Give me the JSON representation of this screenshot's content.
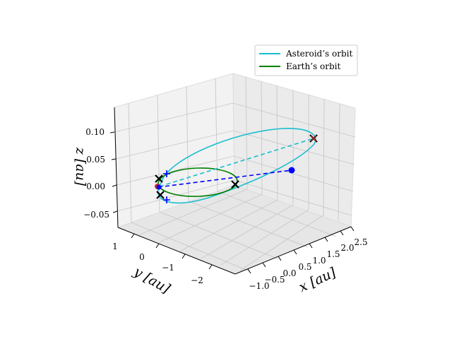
{
  "chart_data": {
    "type": "line",
    "projection": "3d",
    "legend": {
      "placement": "top-right",
      "entries": [
        {
          "label": "Asteroid’s orbit",
          "color": "#17becf"
        },
        {
          "label": "Earth’s orbit",
          "color": "#008000"
        }
      ]
    },
    "axes": {
      "x": {
        "label": "x [au]",
        "ticks": [
          "−1.0",
          "−0.5",
          "0.0",
          "0.5",
          "1.0",
          "1.5",
          "2.0",
          "2.5"
        ],
        "range": [
          -1.2,
          2.6
        ]
      },
      "y": {
        "label": "y [au]",
        "ticks": [
          "1",
          "0",
          "−1",
          "−2"
        ],
        "range": [
          -2.8,
          1.3
        ]
      },
      "z": {
        "label": "z [au]",
        "ticks": [
          "−0.05",
          "0.00",
          "0.05",
          "0.10"
        ],
        "range": [
          -0.07,
          0.14
        ]
      },
      "grid": true
    },
    "series": [
      {
        "name": "Asteroid’s orbit",
        "type": "ellipse-3d",
        "color": "#17becf",
        "semi_major_axis": 1.85,
        "eccentricity": 0.46,
        "inclination_deg": 3.9
      },
      {
        "name": "Earth’s orbit",
        "type": "ellipse-3d",
        "color": "#008000",
        "semi_major_axis": 1.0,
        "eccentricity": 0.017,
        "inclination_deg": 0.0
      }
    ],
    "markers": {
      "earth_x": [
        {
          "x": 1.0,
          "y": 0.0,
          "z": 0.0
        },
        {
          "x": -0.7,
          "y": 0.7,
          "z": 0.0
        },
        {
          "x": -0.8,
          "y": -0.6,
          "z": 0.0
        }
      ],
      "asteroid_plus": [
        {
          "x": -0.7,
          "y": 0.6,
          "z": 0.01
        },
        {
          "x": -0.75,
          "y": -0.55,
          "z": -0.03
        }
      ],
      "asteroid_x": [
        {
          "x": 2.7,
          "y": -0.3,
          "z": 0.09
        }
      ],
      "sun": {
        "x": 0.0,
        "y": 0.0,
        "z": 0.0
      },
      "asteroid_point": {
        "x": 2.0,
        "y": -0.6,
        "z": 0.03
      }
    }
  }
}
